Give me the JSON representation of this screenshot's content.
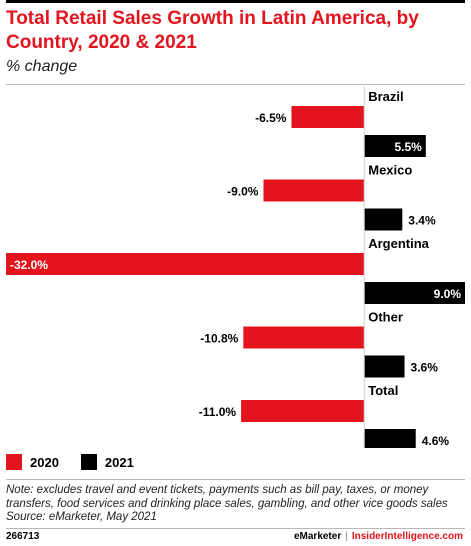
{
  "header": {
    "title": "Total Retail Sales Growth in Latin America, by Country, 2020 & 2021",
    "subtitle": "% change"
  },
  "colors": {
    "series_2020": "#e3141e",
    "series_2021": "#000000",
    "accent": "#e3141e"
  },
  "chart_data": {
    "type": "bar",
    "orientation": "horizontal",
    "categories": [
      "Brazil",
      "Mexico",
      "Argentina",
      "Other",
      "Total"
    ],
    "series": [
      {
        "name": "2020",
        "values": [
          -6.5,
          -9.0,
          -32.0,
          -10.8,
          -11.0
        ],
        "labels": [
          "-6.5%",
          "-9.0%",
          "-32.0%",
          "-10.8%",
          "-11.0%"
        ]
      },
      {
        "name": "2021",
        "values": [
          5.5,
          3.4,
          9.0,
          3.6,
          4.6
        ],
        "labels": [
          "5.5%",
          "3.4%",
          "9.0%",
          "3.6%",
          "4.6%"
        ]
      }
    ],
    "title": "Total Retail Sales Growth in Latin America, by Country, 2020 & 2021",
    "subtitle": "% change",
    "xlim": [
      -32.0,
      9.0
    ],
    "grid": false,
    "legend_position": "bottom-left"
  },
  "legend": {
    "items": [
      {
        "label": "2020"
      },
      {
        "label": "2021"
      }
    ]
  },
  "footer": {
    "note": "Note: excludes travel and event tickets, payments such as bill pay, taxes, or money transfers, food services and drinking place sales, gambling, and other vice goods sales",
    "source": "Source: eMarketer, May 2021",
    "chart_id": "266713",
    "brand_emarketer": "eMarketer",
    "brand_separator": "|",
    "brand_insider": "InsiderIntelligence.com"
  }
}
